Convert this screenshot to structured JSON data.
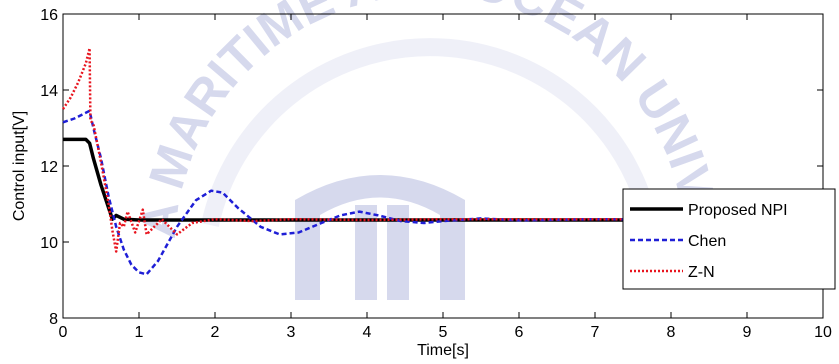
{
  "chart_data": {
    "type": "line",
    "title": "",
    "xlabel": "Time[s]",
    "ylabel": "Control input[V]",
    "xlim": [
      0,
      10
    ],
    "ylim": [
      8,
      16
    ],
    "xticks": [
      0,
      1,
      2,
      3,
      4,
      5,
      6,
      7,
      8,
      9,
      10
    ],
    "yticks": [
      8,
      10,
      12,
      14,
      16
    ],
    "grid": false,
    "legend_position": "bottom-right",
    "series": [
      {
        "name": "Proposed NPI",
        "color": "#000000",
        "style": "solid",
        "points": [
          [
            0,
            12.7
          ],
          [
            0.3,
            12.7
          ],
          [
            0.35,
            12.6
          ],
          [
            0.4,
            12.2
          ],
          [
            0.5,
            11.5
          ],
          [
            0.6,
            10.9
          ],
          [
            0.65,
            10.6
          ],
          [
            0.7,
            10.7
          ],
          [
            0.75,
            10.65
          ],
          [
            0.8,
            10.6
          ],
          [
            1.0,
            10.58
          ],
          [
            2.0,
            10.58
          ],
          [
            5.0,
            10.58
          ],
          [
            10.0,
            10.58
          ]
        ]
      },
      {
        "name": "Chen",
        "color": "#1f1fd6",
        "style": "dashed",
        "points": [
          [
            0,
            13.15
          ],
          [
            0.15,
            13.25
          ],
          [
            0.3,
            13.4
          ],
          [
            0.35,
            13.45
          ],
          [
            0.4,
            13.0
          ],
          [
            0.5,
            12.2
          ],
          [
            0.6,
            11.2
          ],
          [
            0.7,
            10.4
          ],
          [
            0.8,
            9.8
          ],
          [
            0.9,
            9.4
          ],
          [
            1.0,
            9.2
          ],
          [
            1.1,
            9.15
          ],
          [
            1.25,
            9.5
          ],
          [
            1.5,
            10.4
          ],
          [
            1.75,
            11.1
          ],
          [
            1.95,
            11.35
          ],
          [
            2.1,
            11.3
          ],
          [
            2.3,
            10.9
          ],
          [
            2.6,
            10.4
          ],
          [
            2.85,
            10.2
          ],
          [
            3.1,
            10.25
          ],
          [
            3.4,
            10.5
          ],
          [
            3.65,
            10.7
          ],
          [
            3.9,
            10.8
          ],
          [
            4.15,
            10.7
          ],
          [
            4.45,
            10.55
          ],
          [
            4.75,
            10.5
          ],
          [
            5.0,
            10.55
          ],
          [
            5.5,
            10.62
          ],
          [
            6.0,
            10.57
          ],
          [
            7.0,
            10.6
          ],
          [
            8.0,
            10.59
          ],
          [
            9.0,
            10.6
          ],
          [
            10.0,
            10.6
          ]
        ]
      },
      {
        "name": "Z-N",
        "color": "#e8141e",
        "style": "dotted",
        "points": [
          [
            0,
            13.5
          ],
          [
            0.1,
            13.8
          ],
          [
            0.2,
            14.2
          ],
          [
            0.3,
            14.7
          ],
          [
            0.35,
            15.1
          ],
          [
            0.36,
            13.2
          ],
          [
            0.4,
            13.1
          ],
          [
            0.5,
            12.1
          ],
          [
            0.6,
            11.0
          ],
          [
            0.65,
            10.3
          ],
          [
            0.7,
            9.75
          ],
          [
            0.75,
            10.5
          ],
          [
            0.8,
            10.4
          ],
          [
            0.85,
            10.8
          ],
          [
            0.95,
            10.25
          ],
          [
            1.05,
            10.85
          ],
          [
            1.1,
            10.2
          ],
          [
            1.2,
            10.4
          ],
          [
            1.3,
            10.6
          ],
          [
            1.5,
            10.2
          ],
          [
            1.7,
            10.5
          ],
          [
            2.0,
            10.6
          ],
          [
            2.5,
            10.55
          ],
          [
            3.0,
            10.6
          ],
          [
            4.0,
            10.58
          ],
          [
            5.0,
            10.6
          ],
          [
            10.0,
            10.6
          ]
        ]
      }
    ]
  },
  "watermark": {
    "text": "KOREA MARITIME AND OCEAN UNIVERSITY",
    "color": "#c9cde8"
  }
}
